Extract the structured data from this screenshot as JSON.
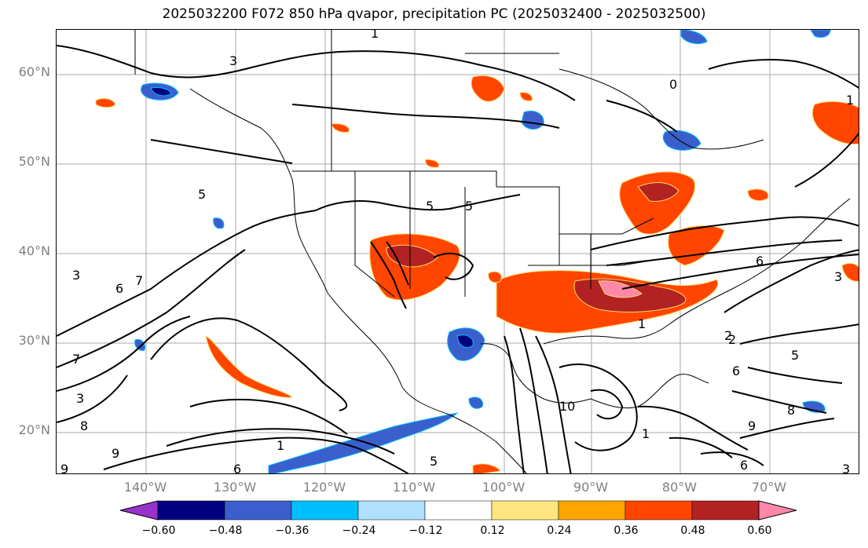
{
  "title": "2025032200 F072 850 hPa qvapor, precipitation PC (2025032400 - 2025032500)",
  "map": {
    "lat_labels": [
      "60°N",
      "50°N",
      "40°N",
      "30°N",
      "20°N"
    ],
    "lon_labels": [
      "140°W",
      "130°W",
      "120°W",
      "110°W",
      "100°W",
      "90°W",
      "80°W",
      "70°W"
    ],
    "contour_labels": [
      "3",
      "1",
      "0",
      "1",
      "5",
      "6",
      "7",
      "3",
      "5",
      "5",
      "1",
      "2",
      "5",
      "3",
      "6",
      "7",
      "3",
      "1",
      "9",
      "8",
      "9",
      "6",
      "10",
      "1",
      "5",
      "9",
      "6",
      "8",
      "6",
      "2",
      "3"
    ]
  },
  "colorbar": {
    "ticks": [
      "−0.60",
      "−0.48",
      "−0.36",
      "−0.24",
      "−0.12",
      "0.12",
      "0.24",
      "0.36",
      "0.48",
      "0.60"
    ],
    "colors": [
      "#9932cc",
      "#000080",
      "#3a5fcd",
      "#00bfff",
      "#b0e0ff",
      "#ffffff",
      "#ffe680",
      "#ffa500",
      "#ff4500",
      "#b22222",
      "#ff88aa"
    ]
  }
}
